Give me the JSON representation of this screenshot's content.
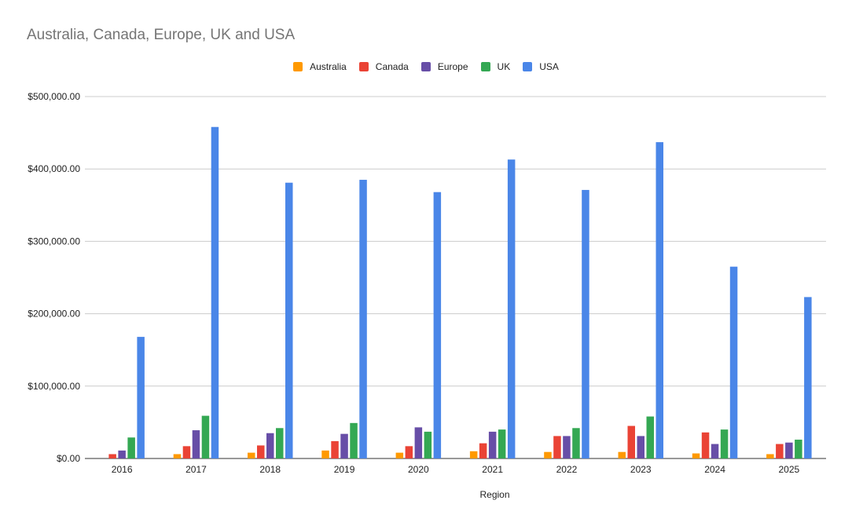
{
  "chart_data": {
    "type": "bar",
    "title": "Australia, Canada, Europe, UK and USA",
    "xlabel": "Region",
    "ylabel": "",
    "ylim": [
      0,
      500000
    ],
    "yticks": [
      0,
      100000,
      200000,
      300000,
      400000,
      500000
    ],
    "ytick_labels": [
      "$0.00",
      "$100,000.00",
      "$200,000.00",
      "$300,000.00",
      "$400,000.00",
      "$500,000.00"
    ],
    "grid": true,
    "legend_position": "top-center",
    "categories": [
      "2016",
      "2017",
      "2018",
      "2019",
      "2020",
      "2021",
      "2022",
      "2023",
      "2024",
      "2025"
    ],
    "series": [
      {
        "name": "Australia",
        "color": "#ff9900",
        "values": [
          0,
          6000,
          8000,
          11000,
          8000,
          10000,
          9000,
          9000,
          7000,
          6000
        ]
      },
      {
        "name": "Canada",
        "color": "#ea4335",
        "values": [
          6000,
          17000,
          18000,
          24000,
          17000,
          21000,
          31000,
          45000,
          36000,
          20000
        ]
      },
      {
        "name": "Europe",
        "color": "#674ea7",
        "values": [
          11000,
          39000,
          35000,
          34000,
          43000,
          37000,
          31000,
          31000,
          20000,
          22000
        ]
      },
      {
        "name": "UK",
        "color": "#34a853",
        "values": [
          29000,
          59000,
          42000,
          49000,
          37000,
          40000,
          42000,
          58000,
          40000,
          26000
        ]
      },
      {
        "name": "USA",
        "color": "#4a86e8",
        "values": [
          168000,
          458000,
          381000,
          385000,
          368000,
          413000,
          371000,
          437000,
          265000,
          223000
        ]
      }
    ]
  }
}
